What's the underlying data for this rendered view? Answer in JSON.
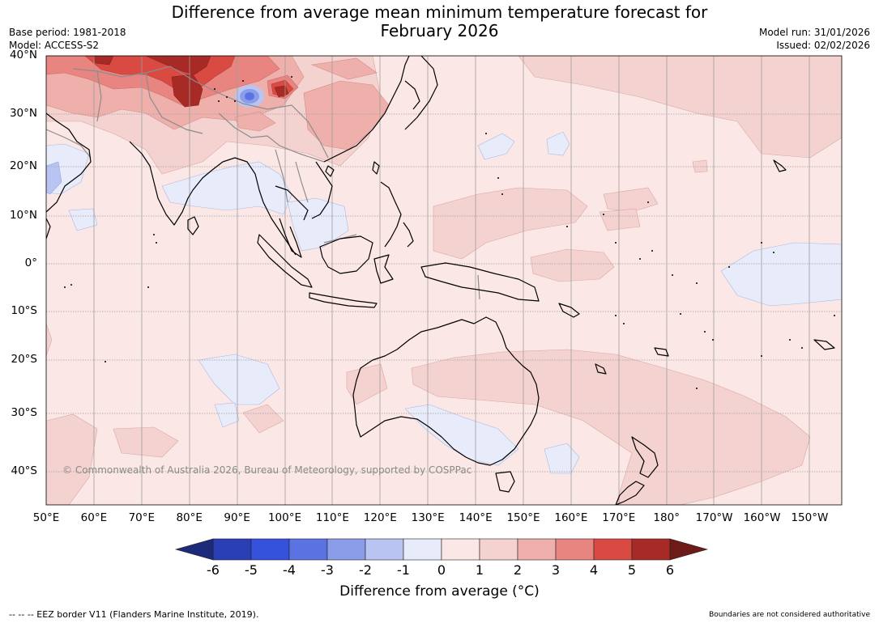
{
  "header": {
    "title_line1": "Difference from average mean minimum temperature forecast for",
    "title_line2": "February 2026",
    "base_period": "Base period: 1981-2018",
    "model": "Model: ACCESS-S2",
    "model_run": "Model run: 31/01/2026",
    "issued": "Issued: 02/02/2026"
  },
  "map": {
    "lat_ticks": [
      "40°N",
      "30°N",
      "20°N",
      "10°N",
      "0°",
      "10°S",
      "20°S",
      "30°S",
      "40°S"
    ],
    "lon_ticks": [
      "50°E",
      "60°E",
      "70°E",
      "80°E",
      "90°E",
      "100°E",
      "110°E",
      "120°E",
      "130°E",
      "140°E",
      "150°E",
      "160°E",
      "170°E",
      "180°",
      "170°W",
      "160°W",
      "150°W"
    ],
    "copyright": "© Commonwealth of Australia 2026, Bureau of Meteorology, supported by COSPPac"
  },
  "colorbar": {
    "labels": [
      "-6",
      "-5",
      "-4",
      "-3",
      "-2",
      "-1",
      "0",
      "1",
      "2",
      "3",
      "4",
      "5",
      "6"
    ],
    "colors": [
      "#2a3fb3",
      "#3552dd",
      "#5b72e3",
      "#8b9ce9",
      "#bac4f2",
      "#e7ebfa",
      "#fbe8e6",
      "#f4d2d0",
      "#efb0ac",
      "#e88580",
      "#d94a42",
      "#a82a26"
    ],
    "under_color": "#1d2a7a",
    "over_color": "#6e1a17",
    "title": "Difference from average (°C)"
  },
  "footer": {
    "eez_note": "--  --  -- EEZ border V11 (Flanders Marine Institute, 2019).",
    "boundaries_note": "Boundaries are not considered authoritative"
  }
}
